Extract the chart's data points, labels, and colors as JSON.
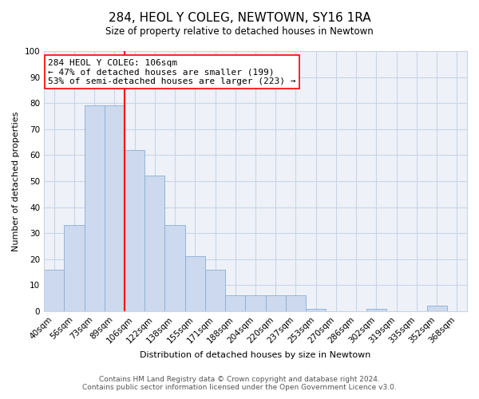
{
  "title": "284, HEOL Y COLEG, NEWTOWN, SY16 1RA",
  "subtitle": "Size of property relative to detached houses in Newtown",
  "xlabel": "Distribution of detached houses by size in Newtown",
  "ylabel": "Number of detached properties",
  "bar_labels": [
    "40sqm",
    "56sqm",
    "73sqm",
    "89sqm",
    "106sqm",
    "122sqm",
    "138sqm",
    "155sqm",
    "171sqm",
    "188sqm",
    "204sqm",
    "220sqm",
    "237sqm",
    "253sqm",
    "270sqm",
    "286sqm",
    "302sqm",
    "319sqm",
    "335sqm",
    "352sqm",
    "368sqm"
  ],
  "bar_heights": [
    16,
    33,
    79,
    79,
    62,
    52,
    33,
    21,
    16,
    6,
    6,
    6,
    6,
    1,
    0,
    0,
    1,
    0,
    0,
    2,
    0
  ],
  "bar_color": "#ccd9ee",
  "bar_edge_color": "#8aadd4",
  "vline_x": 3.5,
  "vline_color": "red",
  "annotation_text": "284 HEOL Y COLEG: 106sqm\n← 47% of detached houses are smaller (199)\n53% of semi-detached houses are larger (223) →",
  "annotation_box_color": "white",
  "annotation_box_edge_color": "red",
  "ylim": [
    0,
    100
  ],
  "yticks": [
    0,
    10,
    20,
    30,
    40,
    50,
    60,
    70,
    80,
    90,
    100
  ],
  "grid_color": "#c8d4e8",
  "bg_color": "#eef2f8",
  "footer_line1": "Contains HM Land Registry data © Crown copyright and database right 2024.",
  "footer_line2": "Contains public sector information licensed under the Open Government Licence v3.0.",
  "title_fontsize": 11,
  "axis_label_fontsize": 8,
  "tick_fontsize": 7.5,
  "annotation_fontsize": 8,
  "footer_fontsize": 6.5
}
